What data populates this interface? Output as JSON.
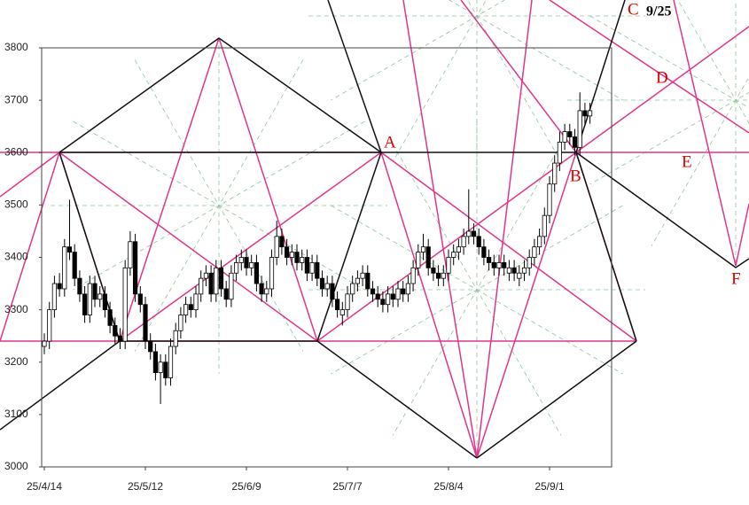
{
  "chart_data": {
    "type": "candlestick",
    "categories": [
      "25/4/14",
      null,
      null,
      null,
      null,
      null,
      null,
      null,
      null,
      null,
      null,
      null,
      null,
      null,
      null,
      null,
      null,
      null,
      null,
      null,
      "25/5/12",
      null,
      null,
      null,
      null,
      null,
      null,
      null,
      null,
      null,
      null,
      null,
      null,
      null,
      null,
      null,
      null,
      null,
      null,
      null,
      "25/6/9",
      null,
      null,
      null,
      null,
      null,
      null,
      null,
      null,
      null,
      null,
      null,
      null,
      null,
      null,
      null,
      null,
      null,
      null,
      null,
      "25/7/7",
      null,
      null,
      null,
      null,
      null,
      null,
      null,
      null,
      null,
      null,
      null,
      null,
      null,
      null,
      null,
      null,
      null,
      null,
      null,
      "25/8/4",
      null,
      null,
      null,
      null,
      null,
      null,
      null,
      null,
      null,
      null,
      null,
      null,
      null,
      null,
      null,
      null,
      null,
      null,
      null,
      "25/9/1",
      null,
      null,
      null,
      null,
      null,
      null,
      null,
      null
    ],
    "open": [
      3230,
      3240,
      3300,
      3350,
      3340,
      3420,
      3410,
      3360,
      3330,
      3290,
      3350,
      3320,
      3330,
      3300,
      3270,
      3250,
      3240,
      3380,
      3430,
      3330,
      3310,
      3240,
      3220,
      3180,
      3200,
      3170,
      3230,
      3260,
      3290,
      3310,
      3300,
      3330,
      3360,
      3370,
      3330,
      3380,
      3340,
      3320,
      3370,
      3390,
      3400,
      3380,
      3390,
      3350,
      3330,
      3340,
      3400,
      3440,
      3420,
      3400,
      3410,
      3390,
      3400,
      3370,
      3390,
      3360,
      3340,
      3350,
      3320,
      3290,
      3300,
      3330,
      3350,
      3360,
      3370,
      3340,
      3330,
      3320,
      3310,
      3330,
      3320,
      3340,
      3330,
      3350,
      3380,
      3410,
      3420,
      3380,
      3370,
      3360,
      3370,
      3400,
      3410,
      3420,
      3440,
      3450,
      3440,
      3420,
      3400,
      3390,
      3380,
      3390,
      3370,
      3380,
      3360,
      3370,
      3380,
      3400,
      3420,
      3440,
      3480,
      3540,
      3580,
      3620,
      3640,
      3630,
      3610,
      3680,
      3670
    ],
    "high": [
      3255,
      3315,
      3365,
      3370,
      3435,
      3510,
      3425,
      3375,
      3345,
      3365,
      3365,
      3345,
      3345,
      3315,
      3285,
      3265,
      3395,
      3450,
      3445,
      3345,
      3325,
      3255,
      3235,
      3215,
      3215,
      3245,
      3275,
      3305,
      3325,
      3325,
      3345,
      3375,
      3385,
      3385,
      3395,
      3395,
      3355,
      3385,
      3405,
      3415,
      3415,
      3405,
      3405,
      3365,
      3355,
      3415,
      3470,
      3455,
      3435,
      3425,
      3425,
      3415,
      3415,
      3405,
      3405,
      3375,
      3365,
      3365,
      3335,
      3315,
      3345,
      3365,
      3375,
      3385,
      3385,
      3355,
      3345,
      3335,
      3345,
      3345,
      3355,
      3355,
      3365,
      3395,
      3425,
      3445,
      3435,
      3395,
      3385,
      3385,
      3415,
      3425,
      3435,
      3455,
      3530,
      3465,
      3455,
      3435,
      3415,
      3405,
      3405,
      3405,
      3395,
      3395,
      3385,
      3395,
      3415,
      3435,
      3455,
      3495,
      3555,
      3595,
      3640,
      3655,
      3655,
      3645,
      3715,
      3695,
      3695
    ],
    "low": [
      3215,
      3225,
      3285,
      3325,
      3325,
      3395,
      3345,
      3315,
      3275,
      3275,
      3305,
      3305,
      3285,
      3255,
      3235,
      3225,
      3225,
      3365,
      3315,
      3295,
      3225,
      3205,
      3165,
      3120,
      3155,
      3155,
      3215,
      3245,
      3275,
      3285,
      3285,
      3315,
      3345,
      3315,
      3315,
      3325,
      3305,
      3305,
      3355,
      3375,
      3365,
      3365,
      3335,
      3315,
      3315,
      3325,
      3385,
      3405,
      3385,
      3385,
      3375,
      3375,
      3355,
      3355,
      3345,
      3325,
      3325,
      3305,
      3285,
      3270,
      3285,
      3315,
      3335,
      3345,
      3325,
      3315,
      3305,
      3295,
      3295,
      3305,
      3305,
      3315,
      3315,
      3335,
      3365,
      3395,
      3365,
      3355,
      3345,
      3345,
      3355,
      3385,
      3395,
      3405,
      3425,
      3425,
      3405,
      3385,
      3375,
      3365,
      3365,
      3365,
      3355,
      3355,
      3345,
      3355,
      3365,
      3385,
      3405,
      3425,
      3465,
      3525,
      3565,
      3605,
      3615,
      3595,
      3595,
      3655,
      3655
    ],
    "close": [
      3240,
      3300,
      3350,
      3340,
      3420,
      3410,
      3360,
      3330,
      3290,
      3350,
      3320,
      3330,
      3300,
      3270,
      3250,
      3240,
      3380,
      3430,
      3330,
      3310,
      3240,
      3220,
      3180,
      3200,
      3170,
      3230,
      3260,
      3290,
      3310,
      3300,
      3330,
      3360,
      3370,
      3330,
      3380,
      3340,
      3320,
      3370,
      3390,
      3400,
      3380,
      3390,
      3350,
      3330,
      3340,
      3400,
      3440,
      3420,
      3400,
      3410,
      3390,
      3400,
      3370,
      3390,
      3360,
      3340,
      3350,
      3320,
      3300,
      3300,
      3330,
      3350,
      3360,
      3370,
      3340,
      3330,
      3320,
      3310,
      3330,
      3320,
      3340,
      3330,
      3350,
      3380,
      3410,
      3420,
      3380,
      3370,
      3360,
      3370,
      3400,
      3410,
      3420,
      3440,
      3450,
      3440,
      3420,
      3400,
      3390,
      3380,
      3390,
      3380,
      3380,
      3370,
      3370,
      3380,
      3400,
      3420,
      3440,
      3480,
      3540,
      3580,
      3620,
      3640,
      3630,
      3610,
      3680,
      3670,
      3680
    ],
    "up_color": "#ffffff",
    "down_color": "#000000",
    "ylim": [
      3000,
      3800
    ],
    "yticks": [
      3000,
      3100,
      3200,
      3300,
      3400,
      3500,
      3600,
      3700,
      3800
    ],
    "annotations": [
      "A",
      "B",
      "C",
      "D",
      "E",
      "F"
    ],
    "date_note": "9/25"
  }
}
